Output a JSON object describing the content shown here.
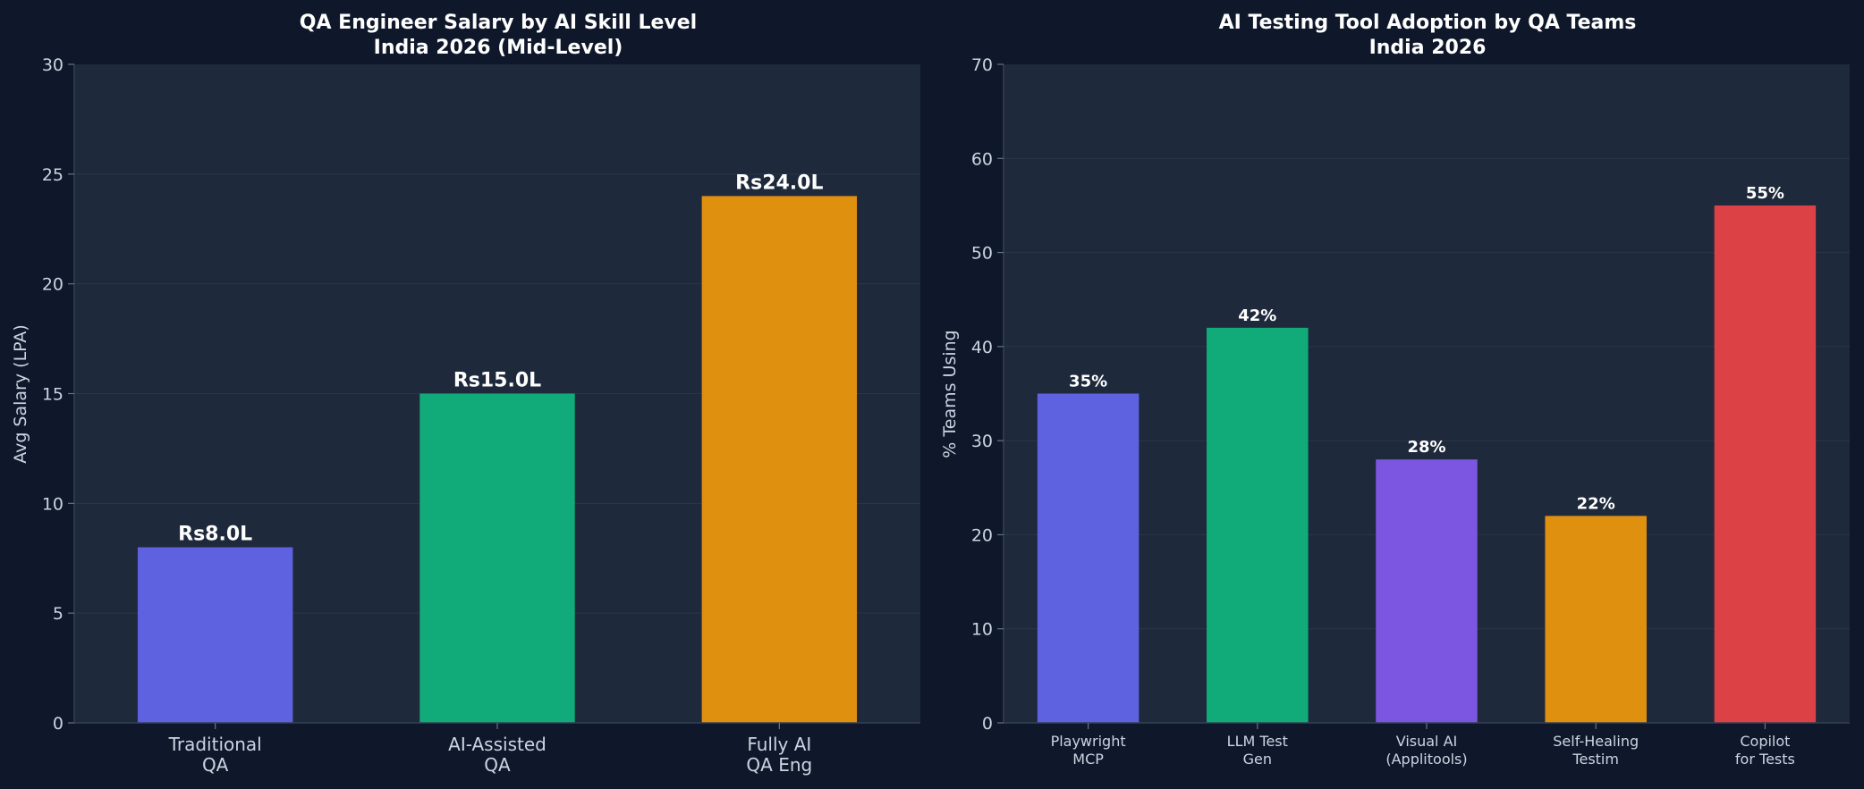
{
  "background_color": "#0f172a",
  "plot_background_color": "#1e293b",
  "grid_color": "#2b3749",
  "text_color": "#cbd5e1",
  "chart_data": [
    {
      "type": "bar",
      "title_lines": [
        "QA Engineer Salary by AI Skill Level",
        "India 2026 (Mid-Level)"
      ],
      "xlabel": "",
      "ylabel": "Avg Salary (LPA)",
      "ylim": [
        0,
        30
      ],
      "yticks": [
        0,
        5,
        10,
        15,
        20,
        25,
        30
      ],
      "grid": true,
      "categories": [
        [
          "Traditional",
          "QA"
        ],
        [
          "AI-Assisted",
          "QA"
        ],
        [
          "Fully AI",
          "QA Eng"
        ]
      ],
      "values": [
        8.0,
        15.0,
        24.0
      ],
      "data_labels": [
        "Rs8.0L",
        "Rs15.0L",
        "Rs24.0L"
      ],
      "colors": [
        "#5e61e0",
        "#10ab78",
        "#e0900f"
      ]
    },
    {
      "type": "bar",
      "title_lines": [
        "AI Testing Tool Adoption by QA Teams",
        "India 2026"
      ],
      "xlabel": "",
      "ylabel": "% Teams Using",
      "ylim": [
        0,
        70
      ],
      "yticks": [
        0,
        10,
        20,
        30,
        40,
        50,
        60,
        70
      ],
      "grid": true,
      "categories": [
        [
          "Playwright",
          "MCP"
        ],
        [
          "LLM Test",
          "Gen"
        ],
        [
          "Visual AI",
          "(Applitools)"
        ],
        [
          "Self-Healing",
          "Testim"
        ],
        [
          "Copilot",
          "for Tests"
        ]
      ],
      "values": [
        35,
        42,
        28,
        22,
        55
      ],
      "data_labels": [
        "35%",
        "42%",
        "28%",
        "22%",
        "55%"
      ],
      "colors": [
        "#5e61e0",
        "#10ab78",
        "#7c56e0",
        "#e0900f",
        "#dc4145"
      ]
    }
  ]
}
